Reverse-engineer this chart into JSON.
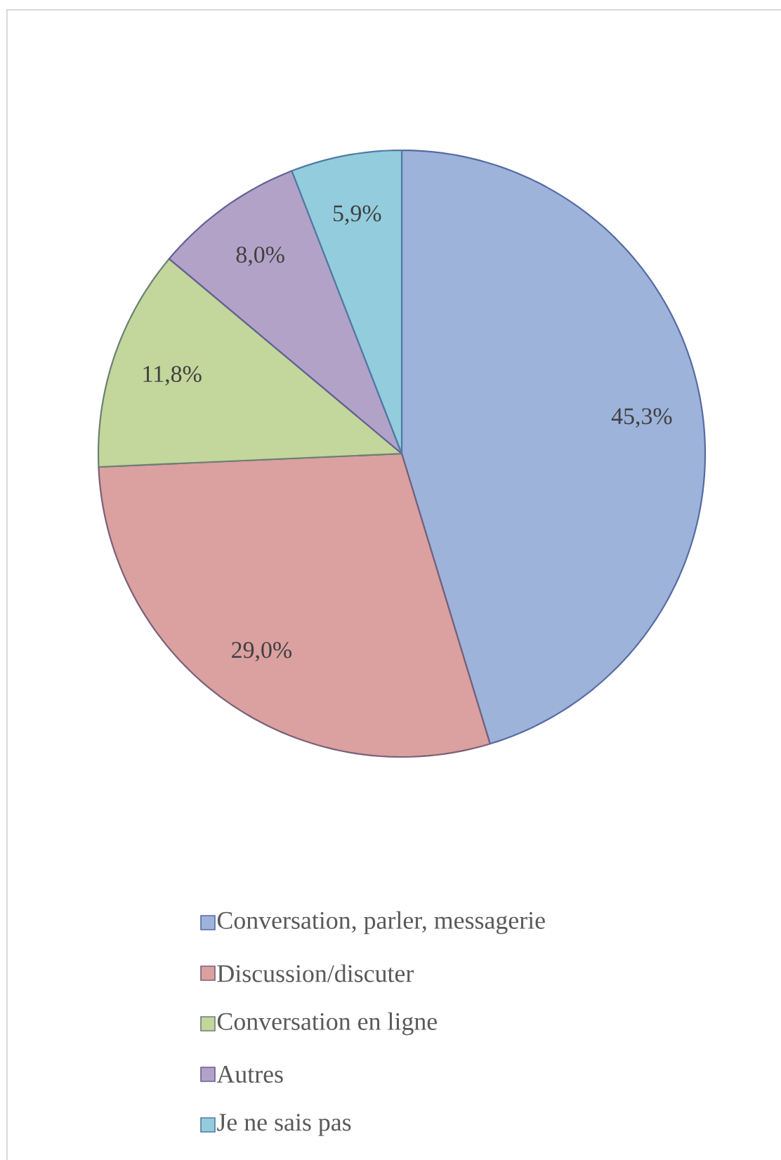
{
  "chart_data": {
    "type": "pie",
    "categories": [
      "Conversation, parler, messagerie",
      "Discussion/discuter",
      "Conversation en ligne",
      "Autres",
      "Je ne sais pas"
    ],
    "values": [
      45.3,
      29.0,
      11.8,
      8.0,
      5.9
    ],
    "value_labels": [
      "45,3%",
      "29,0%",
      "11,8%",
      "8,0%",
      "5,9%"
    ],
    "colors": [
      "#9db3da",
      "#dba0a0",
      "#c3d69b",
      "#b3a2c7",
      "#93cddd"
    ],
    "legend": "bottom"
  }
}
